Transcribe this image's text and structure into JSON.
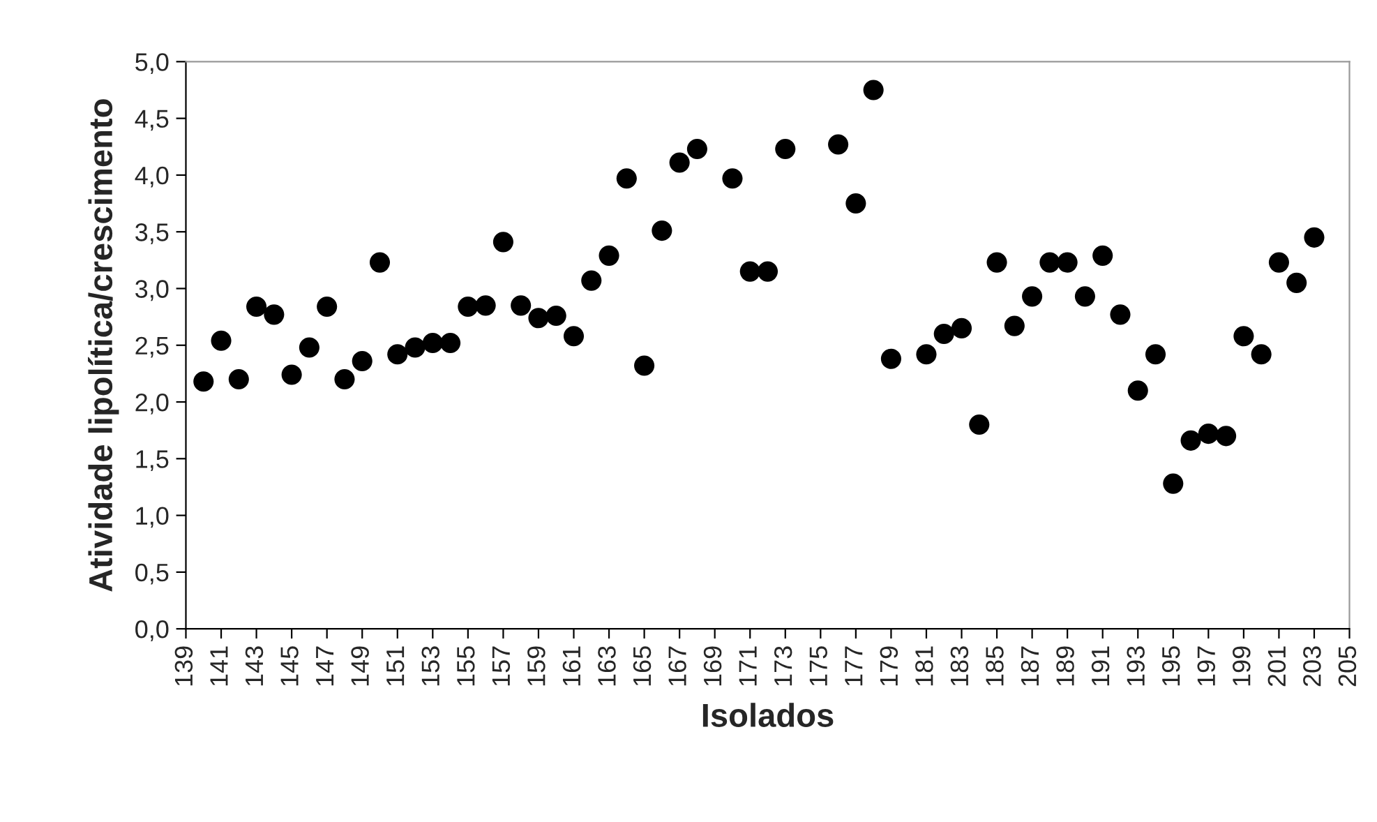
{
  "chart_data": {
    "type": "scatter",
    "xlabel": "Isolados",
    "ylabel": "Atividade lipolítica/crescimento",
    "x": [
      140,
      141,
      142,
      143,
      144,
      145,
      146,
      147,
      148,
      149,
      150,
      151,
      152,
      153,
      154,
      155,
      156,
      157,
      158,
      159,
      160,
      161,
      162,
      163,
      164,
      165,
      166,
      167,
      168,
      170,
      171,
      172,
      173,
      176,
      177,
      178,
      179,
      181,
      182,
      183,
      184,
      185,
      186,
      187,
      188,
      189,
      190,
      191,
      192,
      193,
      194,
      195,
      196,
      197,
      198,
      199,
      200,
      201,
      202,
      203
    ],
    "series": [
      {
        "color": "#000000",
        "values": [
          2.18,
          2.54,
          2.2,
          2.84,
          2.77,
          2.24,
          2.48,
          2.84,
          2.2,
          2.36,
          3.23,
          2.42,
          2.48,
          2.52,
          2.52,
          2.84,
          2.85,
          3.41,
          2.85,
          2.74,
          2.76,
          2.58,
          3.07,
          3.29,
          3.97,
          2.32,
          3.51,
          4.11,
          4.23,
          3.97,
          3.15,
          3.15,
          4.23,
          4.27,
          3.75,
          4.75,
          2.38,
          2.42,
          2.6,
          2.65,
          1.8,
          3.23,
          2.67,
          2.93,
          3.23,
          3.23,
          2.93,
          3.29,
          2.77,
          2.1,
          2.42,
          1.28,
          1.66,
          1.72,
          1.7,
          2.58,
          2.42,
          3.23,
          3.05,
          3.45
        ]
      }
    ],
    "marker": "circle",
    "grid": false,
    "xlim": [
      139,
      205
    ],
    "xticks": [
      139,
      141,
      143,
      145,
      147,
      149,
      151,
      153,
      155,
      157,
      159,
      161,
      163,
      165,
      167,
      169,
      171,
      173,
      175,
      177,
      179,
      181,
      183,
      185,
      187,
      189,
      191,
      193,
      195,
      197,
      199,
      201,
      203,
      205
    ],
    "ylim": [
      0,
      5
    ],
    "yticks": [
      {
        "value": 0,
        "label": "0,0"
      },
      {
        "value": 0.5,
        "label": "0,5"
      },
      {
        "value": 1,
        "label": "1,0"
      },
      {
        "value": 1.5,
        "label": "1,5"
      },
      {
        "value": 2,
        "label": "2,0"
      },
      {
        "value": 2.5,
        "label": "2,5"
      },
      {
        "value": 3,
        "label": "3,0"
      },
      {
        "value": 3.5,
        "label": "3,5"
      },
      {
        "value": 4,
        "label": "4,0"
      },
      {
        "value": 4.5,
        "label": "4,5"
      },
      {
        "value": 5,
        "label": "5,0"
      }
    ]
  }
}
